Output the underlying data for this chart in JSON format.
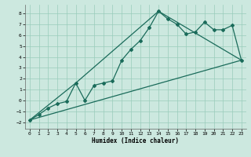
{
  "xlabel": "Humidex (Indice chaleur)",
  "bg_color": "#cce8df",
  "grid_color": "#99ccbb",
  "line_color": "#1a6b5a",
  "xlim": [
    -0.5,
    23.5
  ],
  "ylim": [
    -2.6,
    8.8
  ],
  "yticks": [
    -2,
    -1,
    0,
    1,
    2,
    3,
    4,
    5,
    6,
    7,
    8
  ],
  "xticks": [
    0,
    1,
    2,
    3,
    4,
    5,
    6,
    7,
    8,
    9,
    10,
    11,
    12,
    13,
    14,
    15,
    16,
    17,
    18,
    19,
    20,
    21,
    22,
    23
  ],
  "line1_x": [
    0,
    1,
    2,
    3,
    4,
    5,
    6,
    7,
    8,
    9,
    10,
    11,
    12,
    13,
    14,
    15,
    16,
    17,
    18,
    19,
    20,
    21,
    22,
    23
  ],
  "line1_y": [
    -1.8,
    -1.3,
    -0.7,
    -0.3,
    -0.1,
    1.6,
    0.0,
    1.4,
    1.6,
    1.8,
    3.7,
    4.7,
    5.5,
    6.7,
    8.2,
    7.5,
    7.0,
    6.1,
    6.3,
    7.2,
    6.5,
    6.5,
    6.9,
    3.7
  ],
  "line2_x": [
    0,
    23
  ],
  "line2_y": [
    -1.8,
    3.7
  ],
  "line3_x": [
    0,
    5,
    14,
    23
  ],
  "line3_y": [
    -1.8,
    1.6,
    8.2,
    3.7
  ]
}
